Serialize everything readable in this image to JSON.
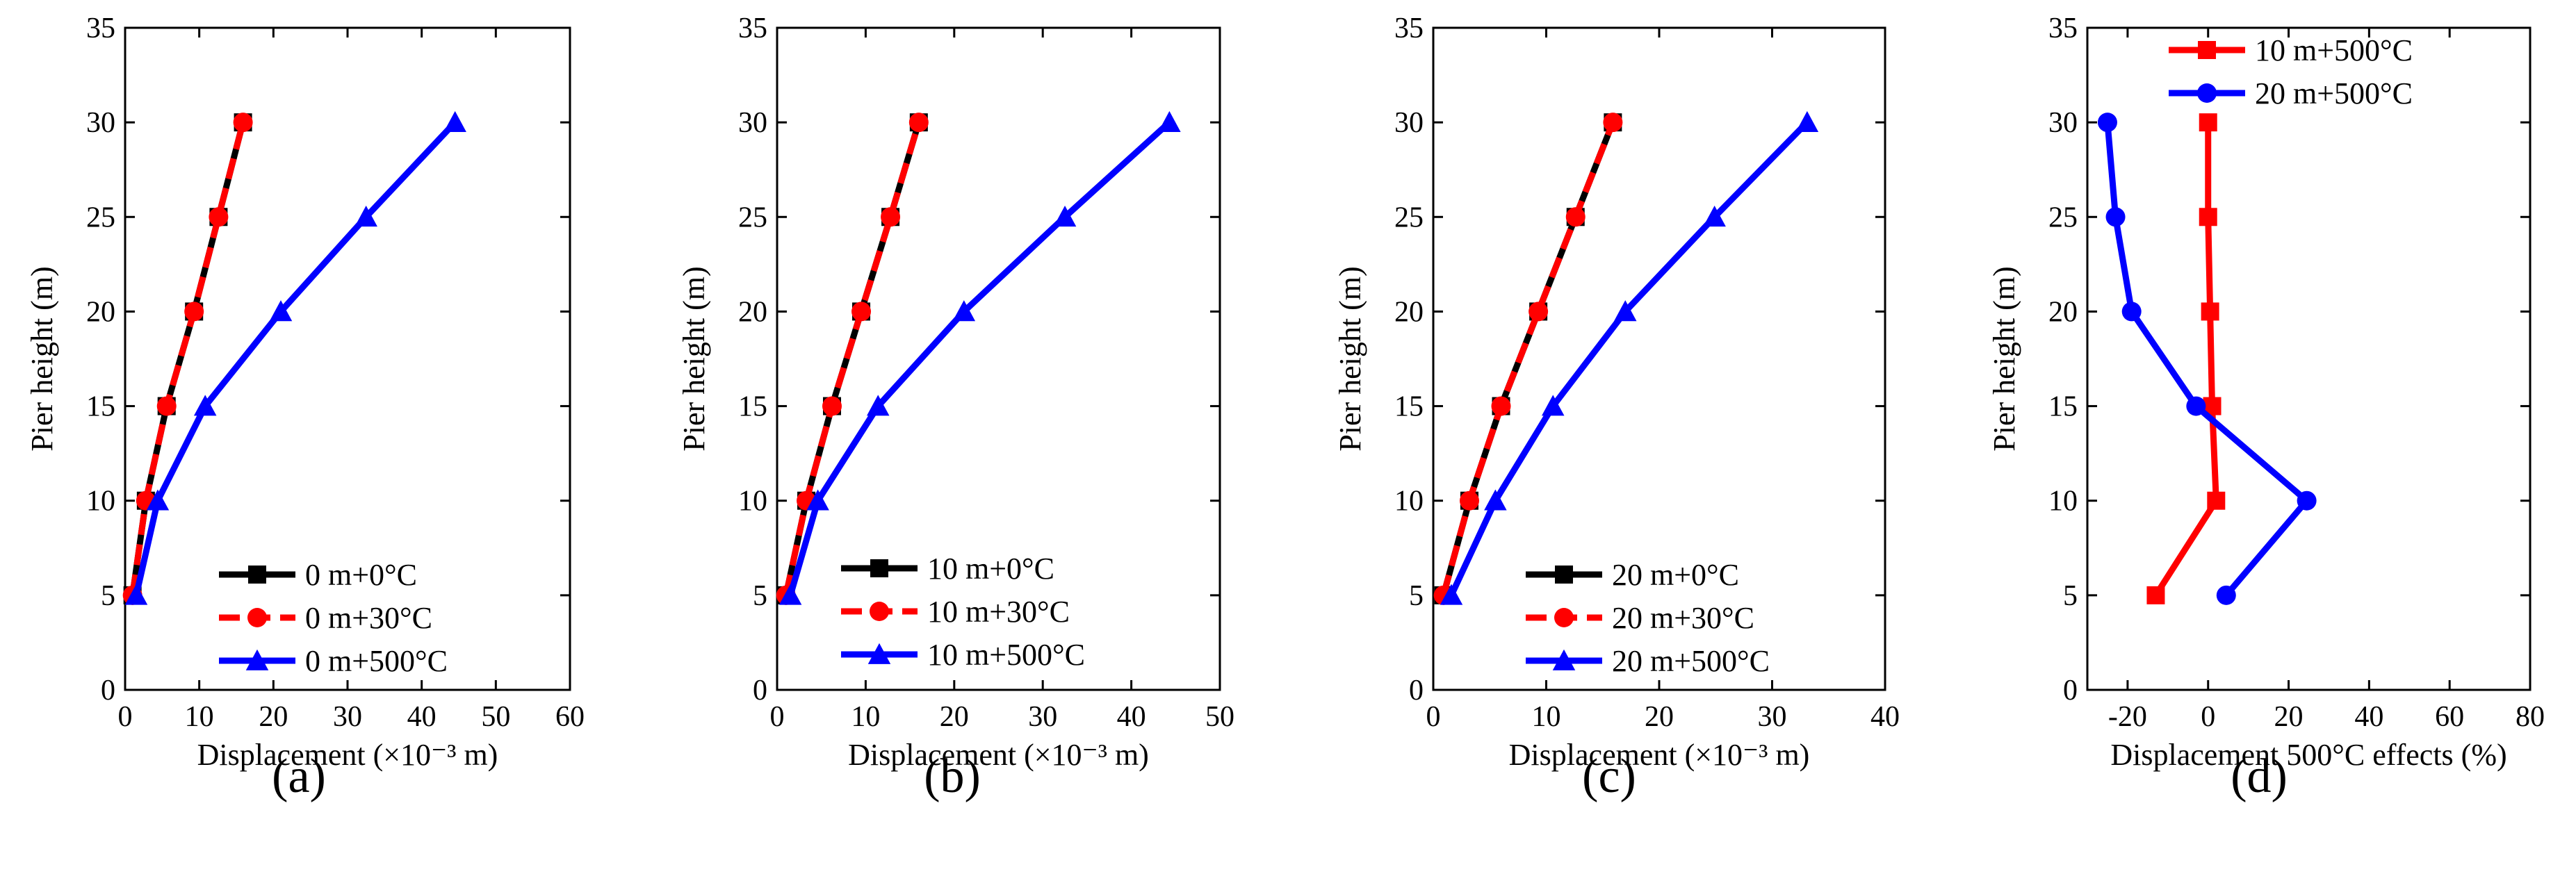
{
  "figure": {
    "panel_labels": [
      "(a)",
      "(b)",
      "(c)",
      "(d)"
    ],
    "colors": {
      "black": "#000000",
      "red": "#ff0000",
      "blue": "#0000ff"
    }
  },
  "chart_data": [
    {
      "type": "line",
      "panel": "(a)",
      "xlabel": "Displacement (×10⁻³ m)",
      "ylabel": "Pier height (m)",
      "xlim": [
        0,
        60
      ],
      "ylim": [
        0,
        35
      ],
      "xticks": [
        0,
        10,
        20,
        30,
        40,
        50,
        60
      ],
      "yticks": [
        0,
        5,
        10,
        15,
        20,
        25,
        30,
        35
      ],
      "legend_position": "bottom-right",
      "series": [
        {
          "name": "0 m+0°C",
          "color": "#000000",
          "marker": "square",
          "dash": false,
          "x": [
            1.0,
            2.8,
            5.6,
            9.3,
            12.6,
            15.9
          ],
          "y": [
            5,
            10,
            15,
            20,
            25,
            30
          ]
        },
        {
          "name": "0 m+30°C",
          "color": "#ff0000",
          "marker": "circle",
          "dash": true,
          "x": [
            1.0,
            2.8,
            5.6,
            9.3,
            12.6,
            15.9
          ],
          "y": [
            5,
            10,
            15,
            20,
            25,
            30
          ]
        },
        {
          "name": "0 m+500°C",
          "color": "#0000ff",
          "marker": "triangle",
          "dash": false,
          "x": [
            1.5,
            4.4,
            10.8,
            21.0,
            32.5,
            44.5
          ],
          "y": [
            5,
            10,
            15,
            20,
            25,
            30
          ]
        }
      ]
    },
    {
      "type": "line",
      "panel": "(b)",
      "xlabel": "Displacement (×10⁻³ m)",
      "ylabel": "Pier height (m)",
      "xlim": [
        0,
        50
      ],
      "ylim": [
        0,
        35
      ],
      "xticks": [
        0,
        10,
        20,
        30,
        40,
        50
      ],
      "yticks": [
        0,
        5,
        10,
        15,
        20,
        25,
        30,
        35
      ],
      "legend_position": "bottom-right",
      "series": [
        {
          "name": "10 m+0°C",
          "color": "#000000",
          "marker": "square",
          "dash": false,
          "x": [
            1.0,
            3.3,
            6.2,
            9.5,
            12.8,
            16.0
          ],
          "y": [
            5,
            10,
            15,
            20,
            25,
            30
          ]
        },
        {
          "name": "10 m+30°C",
          "color": "#ff0000",
          "marker": "circle",
          "dash": true,
          "x": [
            1.0,
            3.3,
            6.2,
            9.5,
            12.8,
            16.0
          ],
          "y": [
            5,
            10,
            15,
            20,
            25,
            30
          ]
        },
        {
          "name": "10 m+500°C",
          "color": "#0000ff",
          "marker": "triangle",
          "dash": false,
          "x": [
            1.5,
            4.6,
            11.4,
            21.1,
            32.5,
            44.3
          ],
          "y": [
            5,
            10,
            15,
            20,
            25,
            30
          ]
        }
      ]
    },
    {
      "type": "line",
      "panel": "(c)",
      "xlabel": "Displacement (×10⁻³ m)",
      "ylabel": "Pier height (m)",
      "xlim": [
        0,
        40
      ],
      "ylim": [
        0,
        35
      ],
      "xticks": [
        0,
        10,
        20,
        30,
        40
      ],
      "yticks": [
        0,
        5,
        10,
        15,
        20,
        25,
        30,
        35
      ],
      "legend_position": "bottom-right",
      "series": [
        {
          "name": "20 m+0°C",
          "color": "#000000",
          "marker": "square",
          "dash": false,
          "x": [
            0.9,
            3.2,
            6.0,
            9.3,
            12.6,
            15.9
          ],
          "y": [
            5,
            10,
            15,
            20,
            25,
            30
          ]
        },
        {
          "name": "20 m+30°C",
          "color": "#ff0000",
          "marker": "circle",
          "dash": true,
          "x": [
            0.9,
            3.2,
            6.0,
            9.3,
            12.6,
            15.9
          ],
          "y": [
            5,
            10,
            15,
            20,
            25,
            30
          ]
        },
        {
          "name": "20 m+500°C",
          "color": "#0000ff",
          "marker": "triangle",
          "dash": false,
          "x": [
            1.6,
            5.5,
            10.6,
            17.0,
            24.9,
            33.1
          ],
          "y": [
            5,
            10,
            15,
            20,
            25,
            30
          ]
        }
      ]
    },
    {
      "type": "line",
      "panel": "(d)",
      "xlabel": "Displacement 500°C effects (%)",
      "ylabel": "Pier height (m)",
      "xlim": [
        -30,
        80
      ],
      "ylim": [
        0,
        35
      ],
      "xticks": [
        -20,
        0,
        20,
        40,
        60,
        80
      ],
      "yticks": [
        0,
        5,
        10,
        15,
        20,
        25,
        30,
        35
      ],
      "legend_position": "top-left",
      "series": [
        {
          "name": "10 m+500°C",
          "color": "#ff0000",
          "marker": "square",
          "dash": false,
          "x": [
            -13,
            2,
            1,
            0.5,
            0,
            0
          ],
          "y": [
            5,
            10,
            15,
            20,
            25,
            30
          ]
        },
        {
          "name": "20 m+500°C",
          "color": "#0000ff",
          "marker": "circle",
          "dash": false,
          "x": [
            4.5,
            24.5,
            -3,
            -19,
            -23,
            -25
          ],
          "y": [
            5,
            10,
            15,
            20,
            25,
            30
          ]
        }
      ]
    }
  ]
}
